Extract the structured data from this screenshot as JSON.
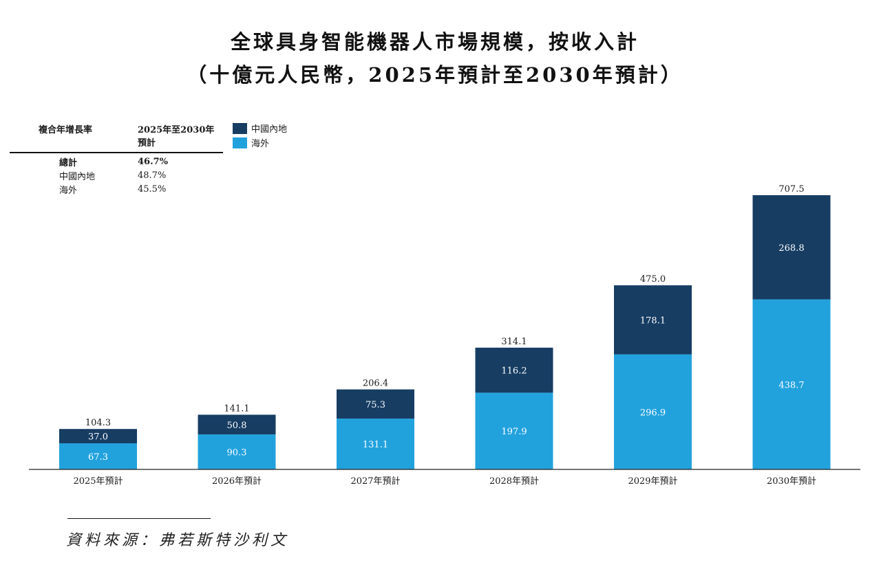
{
  "title_line1": "全球具身智能機器人市場規模，按收入計",
  "title_line2": "（十億元人民幣，2025年預計至2030年預計）",
  "cagr_table": {
    "header_label": "複合年增長率",
    "header_period": "2025年至2030年預計",
    "rows": [
      {
        "label": "總計",
        "value": "46.7%"
      },
      {
        "label": "中國內地",
        "value": "48.7%"
      },
      {
        "label": "海外",
        "value": "45.5%"
      }
    ]
  },
  "legend": [
    {
      "label": "中國內地",
      "color": "#173d63"
    },
    {
      "label": "海外",
      "color": "#22a2dd"
    }
  ],
  "chart_data": {
    "type": "bar",
    "stacked": true,
    "title": "全球具身智能機器人市場規模，按收入計",
    "subtitle": "（十億元人民幣，2025年預計至2030年預計）",
    "categories": [
      "2025年預計",
      "2026年預計",
      "2027年預計",
      "2028年預計",
      "2029年預計",
      "2030年預計"
    ],
    "series": [
      {
        "name": "海外",
        "color": "#22a2dd",
        "values": [
          67.3,
          90.3,
          131.1,
          197.9,
          296.9,
          438.7
        ],
        "labels": [
          "67.3",
          "90.3",
          "131.1",
          "197.9",
          "296.9",
          "438.7"
        ]
      },
      {
        "name": "中國內地",
        "color": "#173d63",
        "values": [
          37.0,
          50.8,
          75.3,
          116.2,
          178.1,
          268.8
        ],
        "labels": [
          "37.0",
          "50.8",
          "75.3",
          "116.2",
          "178.1",
          "268.8"
        ]
      }
    ],
    "totals": [
      104.3,
      141.1,
      206.4,
      314.1,
      475.0,
      707.5
    ],
    "total_labels": [
      "104.3",
      "141.1",
      "206.4",
      "314.1",
      "475.0",
      "707.5"
    ],
    "ylim": [
      0,
      707.5
    ],
    "xlabel": "",
    "ylabel": "",
    "grid": false,
    "legend_position": "top-left"
  },
  "source": "資料來源：弗若斯特沙利文"
}
